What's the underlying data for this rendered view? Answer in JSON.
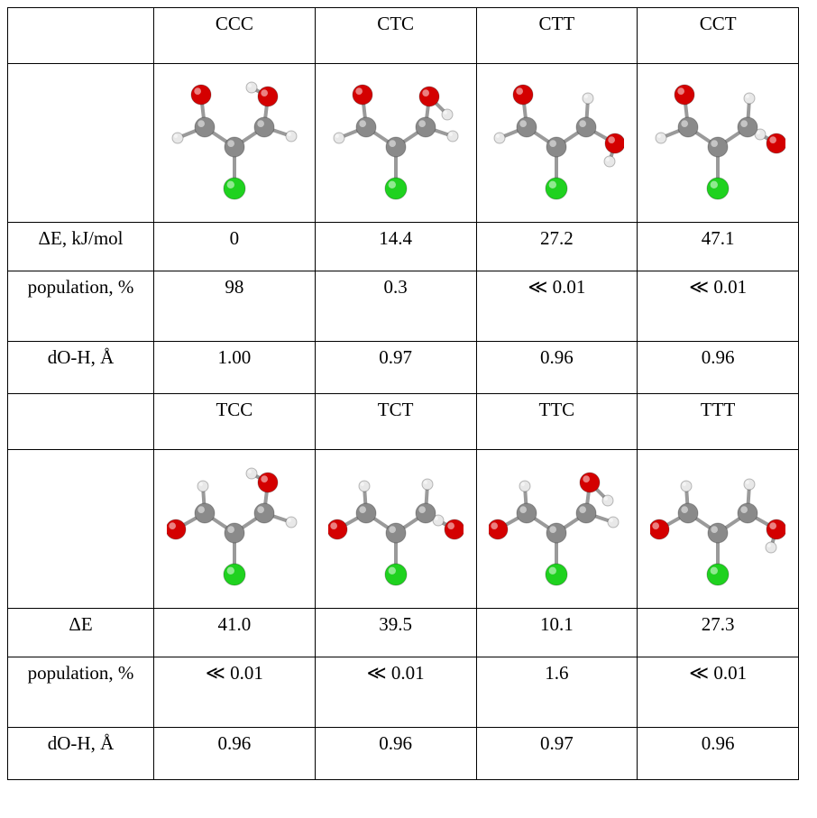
{
  "table": {
    "blocks": [
      {
        "columns": [
          "CCC",
          "CTC",
          "CTT",
          "CCT"
        ],
        "rows": [
          {
            "label": "ΔE, kJ/mol",
            "cells": [
              "0",
              "14.4",
              "27.2",
              "47.1"
            ]
          },
          {
            "label": "population, %",
            "cells": [
              "98",
              "0.3",
              "≪ 0.01",
              "≪ 0.01"
            ]
          },
          {
            "label": "dO-H, Å",
            "cells": [
              "1.00",
              "0.97",
              "0.96",
              "0.96"
            ]
          }
        ]
      },
      {
        "columns": [
          "TCC",
          "TCT",
          "TTC",
          "TTT"
        ],
        "rows": [
          {
            "label": "ΔE",
            "cells": [
              "41.0",
              "39.5",
              "10.1",
              "27.3"
            ]
          },
          {
            "label": "population, %",
            "cells": [
              "≪ 0.01",
              "≪ 0.01",
              "1.6",
              "≪ 0.01"
            ]
          },
          {
            "label": "dO-H, Å",
            "cells": [
              "0.96",
              "0.96",
              "0.97",
              "0.96"
            ]
          }
        ]
      }
    ]
  }
}
